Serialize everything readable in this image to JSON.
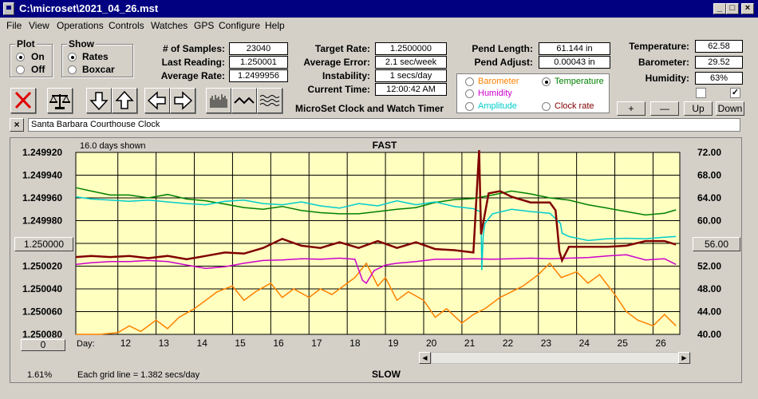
{
  "window": {
    "title": "C:\\microset\\2021_04_26.mst"
  },
  "menu": [
    "File",
    "View",
    "Operations",
    "Controls",
    "Watches",
    "GPS",
    "Configure",
    "Help"
  ],
  "plot_group": {
    "label": "Plot",
    "options": [
      "On",
      "Off"
    ],
    "selected": "On"
  },
  "show_group": {
    "label": "Show",
    "options": [
      "Rates",
      "Boxcar"
    ],
    "selected": "Rates"
  },
  "stats": {
    "samples_label": "# of Samples:",
    "samples": "23040",
    "last_reading_label": "Last Reading:",
    "last_reading": "1.250001",
    "average_rate_label": "Average Rate:",
    "average_rate": "1.2499956"
  },
  "rates": {
    "target_rate_label": "Target Rate:",
    "target_rate": "1.2500000",
    "average_error_label": "Average Error:",
    "average_error": "2.1 sec/week",
    "instability_label": "Instability:",
    "instability": "1 secs/day",
    "current_time_label": "Current Time:",
    "current_time": "12:00:42 AM",
    "app_caption": "MicroSet Clock and Watch Timer"
  },
  "pendulum": {
    "length_label": "Pend Length:",
    "length": "61.144 in",
    "adjust_label": "Pend Adjust:",
    "adjust": "0.00043 in"
  },
  "environment": {
    "temperature_label": "Temperature:",
    "temperature": "62.58",
    "barometer_label": "Barometer:",
    "barometer": "29.52",
    "humidity_label": "Humidity:",
    "humidity": "63%",
    "check1": false,
    "check2": true
  },
  "legend": {
    "items": [
      {
        "label": "Barometer",
        "color": "#ff8000",
        "selected": false
      },
      {
        "label": "Temperature",
        "color": "#008000",
        "selected": true
      },
      {
        "label": "Humidity",
        "color": "#cc00cc",
        "selected": false
      },
      {
        "label": "Amplitude",
        "color": "#00cccc",
        "selected": false
      },
      {
        "label": "Clock rate",
        "color": "#800000",
        "selected": false
      }
    ]
  },
  "scale_buttons": {
    "plus": "+",
    "minus": "—",
    "up": "Up",
    "down": "Down"
  },
  "clock_name": "Santa Barbara Courthouse Clock",
  "chart": {
    "days_shown": "16.0 days shown",
    "fast_label": "FAST",
    "slow_label": "SLOW",
    "grid_note": "Each grid line = 1.382 secs/day",
    "percent": "1.61%",
    "left_button": "1.250000",
    "right_button": "56.00",
    "zero_button": "0",
    "day_label": "Day:"
  },
  "chart_data": {
    "type": "line",
    "x_label": "Day:",
    "x_ticks": [
      12,
      13,
      14,
      15,
      16,
      17,
      18,
      19,
      20,
      21,
      22,
      23,
      24,
      25,
      26
    ],
    "xlim": [
      10.9,
      26.7
    ],
    "y_left_ticks": [
      "1.249920",
      "1.249940",
      "1.249960",
      "1.249980",
      "1.250000",
      "1.250020",
      "1.250040",
      "1.250060",
      "1.250080"
    ],
    "y_left_range": [
      1.24992,
      1.25008
    ],
    "y_right_ticks": [
      "72.00",
      "68.00",
      "64.00",
      "60.00",
      "56.00",
      "52.00",
      "48.00",
      "44.00",
      "40.00"
    ],
    "y_right_range": [
      72,
      40
    ],
    "series": [
      {
        "name": "Barometer",
        "color": "#ff8000",
        "x": [
          10.9,
          11.5,
          12,
          12.3,
          12.6,
          13,
          13.3,
          13.6,
          14,
          14.3,
          14.6,
          15,
          15.3,
          15.6,
          16,
          16.3,
          16.6,
          17,
          17.3,
          17.6,
          18,
          18.2,
          18.5,
          18.8,
          19,
          19.3,
          19.6,
          20,
          20.3,
          20.6,
          21,
          21.3,
          21.6,
          22,
          22.3,
          22.6,
          23,
          23.3,
          23.6,
          24,
          24.3,
          24.6,
          25,
          25.3,
          25.6,
          26,
          26.3,
          26.6
        ],
        "y": [
          40,
          40,
          40.3,
          41.5,
          40.5,
          42.5,
          41,
          43,
          44.5,
          46,
          47.5,
          48.5,
          46,
          47.5,
          49,
          46.5,
          48,
          46.5,
          48,
          47,
          49,
          50,
          52.5,
          48.5,
          50,
          46,
          47.5,
          46,
          43,
          44.5,
          42,
          43.5,
          44.5,
          46.5,
          47.5,
          48.5,
          50.5,
          52.5,
          50,
          51,
          49,
          50.5,
          47,
          44,
          42.5,
          41.5,
          43.5,
          41.5
        ]
      },
      {
        "name": "Temperature",
        "color": "#008000",
        "x": [
          10.9,
          11.3,
          11.8,
          12.3,
          12.8,
          13.3,
          13.8,
          14.3,
          14.8,
          15.3,
          15.8,
          16.3,
          16.8,
          17.3,
          17.8,
          18.3,
          18.8,
          19.3,
          19.8,
          20.3,
          20.8,
          21.3,
          21.8,
          22.3,
          22.8,
          23.3,
          23.8,
          24.3,
          24.8,
          25.3,
          25.8,
          26.3,
          26.6
        ],
        "y": [
          65.8,
          65.2,
          64.5,
          64.5,
          64.0,
          64.6,
          63.8,
          63.5,
          62.9,
          62.3,
          62.0,
          62.5,
          61.8,
          61.4,
          61.2,
          61.2,
          61.6,
          62.0,
          62.3,
          63.2,
          63.7,
          63.9,
          64.5,
          65.2,
          64.7,
          64.0,
          63.6,
          62.8,
          62.2,
          61.6,
          61.0,
          61.3,
          61.9
        ]
      },
      {
        "name": "Amplitude",
        "color": "#00cccc",
        "x": [
          10.9,
          11.3,
          11.8,
          12.3,
          12.8,
          13.3,
          13.8,
          14.3,
          14.8,
          15.3,
          15.8,
          16.3,
          16.8,
          17.3,
          17.8,
          18.3,
          18.8,
          19.3,
          19.8,
          20.3,
          20.8,
          21.3,
          21.5,
          21.52,
          21.56,
          21.6,
          21.8,
          22.3,
          22.8,
          23.3,
          23.58,
          23.62,
          23.8,
          24.3,
          24.8,
          25.3,
          25.8,
          26.3,
          26.6
        ],
        "y": [
          64.2,
          63.8,
          63.6,
          63.4,
          63.6,
          63.3,
          63.0,
          62.8,
          63.4,
          63.6,
          63.0,
          62.8,
          63.3,
          62.6,
          62.2,
          63.0,
          62.6,
          63.5,
          62.8,
          63.3,
          62.5,
          62.1,
          61.5,
          51.3,
          57.5,
          59.5,
          61.2,
          62.0,
          61.6,
          61.3,
          59.5,
          57.8,
          57.2,
          56.5,
          56.8,
          56.9,
          56.8,
          57.1,
          57.2
        ]
      },
      {
        "name": "Humidity",
        "color": "#cc00cc",
        "x": [
          10.9,
          11.3,
          11.8,
          12.3,
          12.8,
          13.3,
          13.8,
          14.3,
          14.8,
          15.3,
          15.8,
          16.3,
          16.8,
          17.3,
          17.8,
          18.2,
          18.4,
          18.5,
          18.7,
          19.0,
          19.3,
          19.8,
          20.3,
          20.8,
          21.3,
          21.8,
          22.3,
          22.8,
          23.3,
          23.8,
          24.3,
          24.8,
          25.3,
          25.8,
          26.3,
          26.6
        ],
        "y": [
          52.3,
          52.6,
          52.8,
          52.8,
          53.0,
          52.8,
          52.2,
          51.6,
          51.9,
          52.5,
          53.0,
          53.1,
          53.3,
          53.2,
          53.4,
          53.2,
          49.5,
          49.0,
          51.2,
          52.2,
          52.5,
          52.8,
          53.2,
          53.2,
          53.3,
          53.2,
          53.3,
          53.4,
          53.3,
          53.4,
          53.5,
          53.8,
          54.0,
          53.1,
          53.3,
          52.3
        ]
      },
      {
        "name": "Clock rate",
        "color": "#800000",
        "x": [
          10.9,
          11.3,
          11.8,
          12.3,
          12.8,
          13.3,
          13.8,
          14.3,
          14.8,
          15.3,
          15.8,
          16.3,
          16.8,
          17.3,
          17.8,
          18.3,
          18.8,
          19.3,
          19.8,
          20.3,
          20.8,
          21.3,
          21.45,
          21.5,
          21.53,
          21.7,
          22.0,
          22.3,
          22.8,
          23.3,
          23.45,
          23.55,
          23.62,
          23.8,
          24.3,
          24.8,
          25.3,
          25.8,
          26.3,
          26.6
        ],
        "y": [
          1.250012,
          1.250011,
          1.250012,
          1.250011,
          1.250013,
          1.250011,
          1.250014,
          1.250011,
          1.250008,
          1.250009,
          1.250004,
          1.249996,
          1.250002,
          1.250004,
          1.249999,
          1.250004,
          1.249998,
          1.250004,
          1.249999,
          1.250005,
          1.250006,
          1.250008,
          1.249918,
          1.249992,
          1.249987,
          1.249956,
          1.249954,
          1.249959,
          1.249964,
          1.249964,
          1.249971,
          1.250007,
          1.250015,
          1.250003,
          1.250003,
          1.250003,
          1.250002,
          1.249998,
          1.249998,
          1.250001
        ]
      }
    ]
  }
}
